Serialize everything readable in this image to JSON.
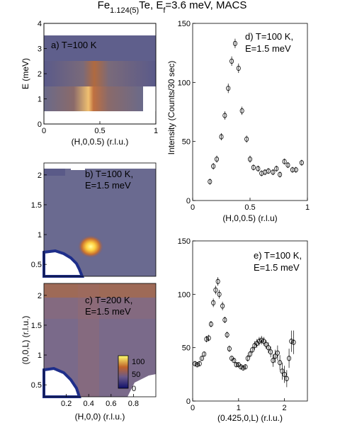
{
  "figure": {
    "title_main": "Fe",
    "title_sub": "1.124(5)",
    "title_mid": "Te, E",
    "title_sub2": "f",
    "title_end": "=3.6 meV, MACS"
  },
  "colors": {
    "map_low": "#1a1a7a",
    "map_mid": "#7a6a8c",
    "map_high": "#ffff80",
    "map_warm": "#c0622a",
    "axis": "#000000"
  },
  "chart_data": [
    {
      "id": "a",
      "type": "heatmap",
      "annotation": "a) T=100 K",
      "xlabel": "(H,0,0.5) (r.l.u.)",
      "ylabel": "E (meV)",
      "xlim": [
        0,
        1
      ],
      "ylim": [
        0,
        4
      ],
      "xticks": [
        "0",
        "0.5",
        "1"
      ],
      "yticks": [
        "0",
        "1",
        "2",
        "3",
        "4"
      ],
      "description_peak_H": 0.4
    },
    {
      "id": "b",
      "type": "heatmap",
      "annotation_line1": "b) T=100 K,",
      "annotation_line2": "E=1.5 meV",
      "ylim": [
        0.3,
        2.2
      ],
      "yticks": [
        "0.5",
        "1",
        "1.5",
        "2"
      ],
      "peak_position": [
        0.42,
        0.5
      ]
    },
    {
      "id": "c",
      "type": "heatmap",
      "annotation_line1": "c) T=200 K,",
      "annotation_line2": "E=1.5 meV",
      "xlabel": "(H,0,0) (r.l.u.)",
      "ylabel": "(0,0,L) (r.l.u.)",
      "xlim": [
        0,
        1
      ],
      "ylim": [
        0.3,
        2.2
      ],
      "xticks": [
        "0.2",
        "0.4",
        "0.6",
        "0.8"
      ],
      "yticks": [
        "0.5",
        "1",
        "1.5",
        "2"
      ],
      "colorbar_ticks": [
        "100",
        "50",
        "0"
      ]
    },
    {
      "id": "d",
      "type": "scatter",
      "annotation_line1": "d) T=100 K,",
      "annotation_line2": "E=1.5 meV",
      "xlabel": "(H,0,0.5) (r.l.u)",
      "ylabel": "Intensity (Counts/30 sec)",
      "xlim": [
        0,
        1
      ],
      "ylim": [
        0,
        150
      ],
      "xticks": [
        "0",
        "0.5",
        "1"
      ],
      "yticks": [
        "0",
        "50",
        "100",
        "150"
      ],
      "points": [
        [
          0.15,
          16,
          2.5
        ],
        [
          0.18,
          29,
          2.8
        ],
        [
          0.21,
          35,
          3
        ],
        [
          0.25,
          54,
          3
        ],
        [
          0.28,
          72,
          3.5
        ],
        [
          0.31,
          95,
          4
        ],
        [
          0.34,
          118,
          4
        ],
        [
          0.37,
          133,
          4
        ],
        [
          0.4,
          112,
          4
        ],
        [
          0.43,
          76,
          3.5
        ],
        [
          0.47,
          52,
          3
        ],
        [
          0.5,
          35,
          3
        ],
        [
          0.53,
          28,
          2.5
        ],
        [
          0.57,
          27,
          2.5
        ],
        [
          0.6,
          23,
          2.5
        ],
        [
          0.63,
          24,
          2.5
        ],
        [
          0.66,
          25,
          2.5
        ],
        [
          0.7,
          24,
          2.5
        ],
        [
          0.73,
          27,
          2.5
        ],
        [
          0.76,
          22,
          2.5
        ],
        [
          0.8,
          33,
          2.5
        ],
        [
          0.83,
          30,
          2.5
        ],
        [
          0.87,
          26,
          2.5
        ],
        [
          0.9,
          26,
          2.5
        ],
        [
          0.95,
          32,
          2.5
        ]
      ]
    },
    {
      "id": "e",
      "type": "scatter",
      "annotation_line1": "e) T=100 K,",
      "annotation_line2": "E=1.5 meV",
      "xlabel": "(0.425,0,L) (r.l.u.)",
      "ylabel": "",
      "xlim": [
        0,
        2.5
      ],
      "ylim": [
        0,
        150
      ],
      "xticks": [
        "0",
        "1",
        "2"
      ],
      "yticks": [
        "0",
        "50",
        "100",
        "150"
      ],
      "points": [
        [
          0.05,
          35,
          2
        ],
        [
          0.1,
          34,
          2
        ],
        [
          0.15,
          35,
          2
        ],
        [
          0.2,
          40,
          2
        ],
        [
          0.25,
          44,
          2
        ],
        [
          0.3,
          58,
          3
        ],
        [
          0.35,
          59,
          3
        ],
        [
          0.4,
          72,
          3
        ],
        [
          0.45,
          92,
          4
        ],
        [
          0.5,
          104,
          4
        ],
        [
          0.55,
          112,
          4
        ],
        [
          0.58,
          100,
          4
        ],
        [
          0.65,
          89,
          4
        ],
        [
          0.7,
          76,
          3
        ],
        [
          0.75,
          62,
          3
        ],
        [
          0.8,
          49,
          3
        ],
        [
          0.85,
          40,
          2
        ],
        [
          0.9,
          38,
          2
        ],
        [
          0.95,
          34,
          2
        ],
        [
          1.0,
          34,
          2
        ],
        [
          1.05,
          32,
          2
        ],
        [
          1.1,
          31,
          2
        ],
        [
          1.15,
          32,
          2
        ],
        [
          1.2,
          40,
          3
        ],
        [
          1.25,
          44,
          3
        ],
        [
          1.3,
          48,
          3
        ],
        [
          1.35,
          52,
          4
        ],
        [
          1.4,
          54,
          4
        ],
        [
          1.45,
          56,
          4
        ],
        [
          1.5,
          57,
          4
        ],
        [
          1.55,
          56,
          4
        ],
        [
          1.6,
          53,
          4
        ],
        [
          1.65,
          50,
          5
        ],
        [
          1.7,
          46,
          5
        ],
        [
          1.75,
          38,
          6
        ],
        [
          1.8,
          42,
          6
        ],
        [
          1.85,
          45,
          7
        ],
        [
          1.9,
          36,
          7
        ],
        [
          1.95,
          28,
          8
        ],
        [
          2.0,
          25,
          8
        ],
        [
          2.05,
          21,
          8
        ],
        [
          2.1,
          40,
          9
        ],
        [
          2.15,
          56,
          10
        ],
        [
          2.2,
          55,
          11
        ]
      ]
    }
  ]
}
